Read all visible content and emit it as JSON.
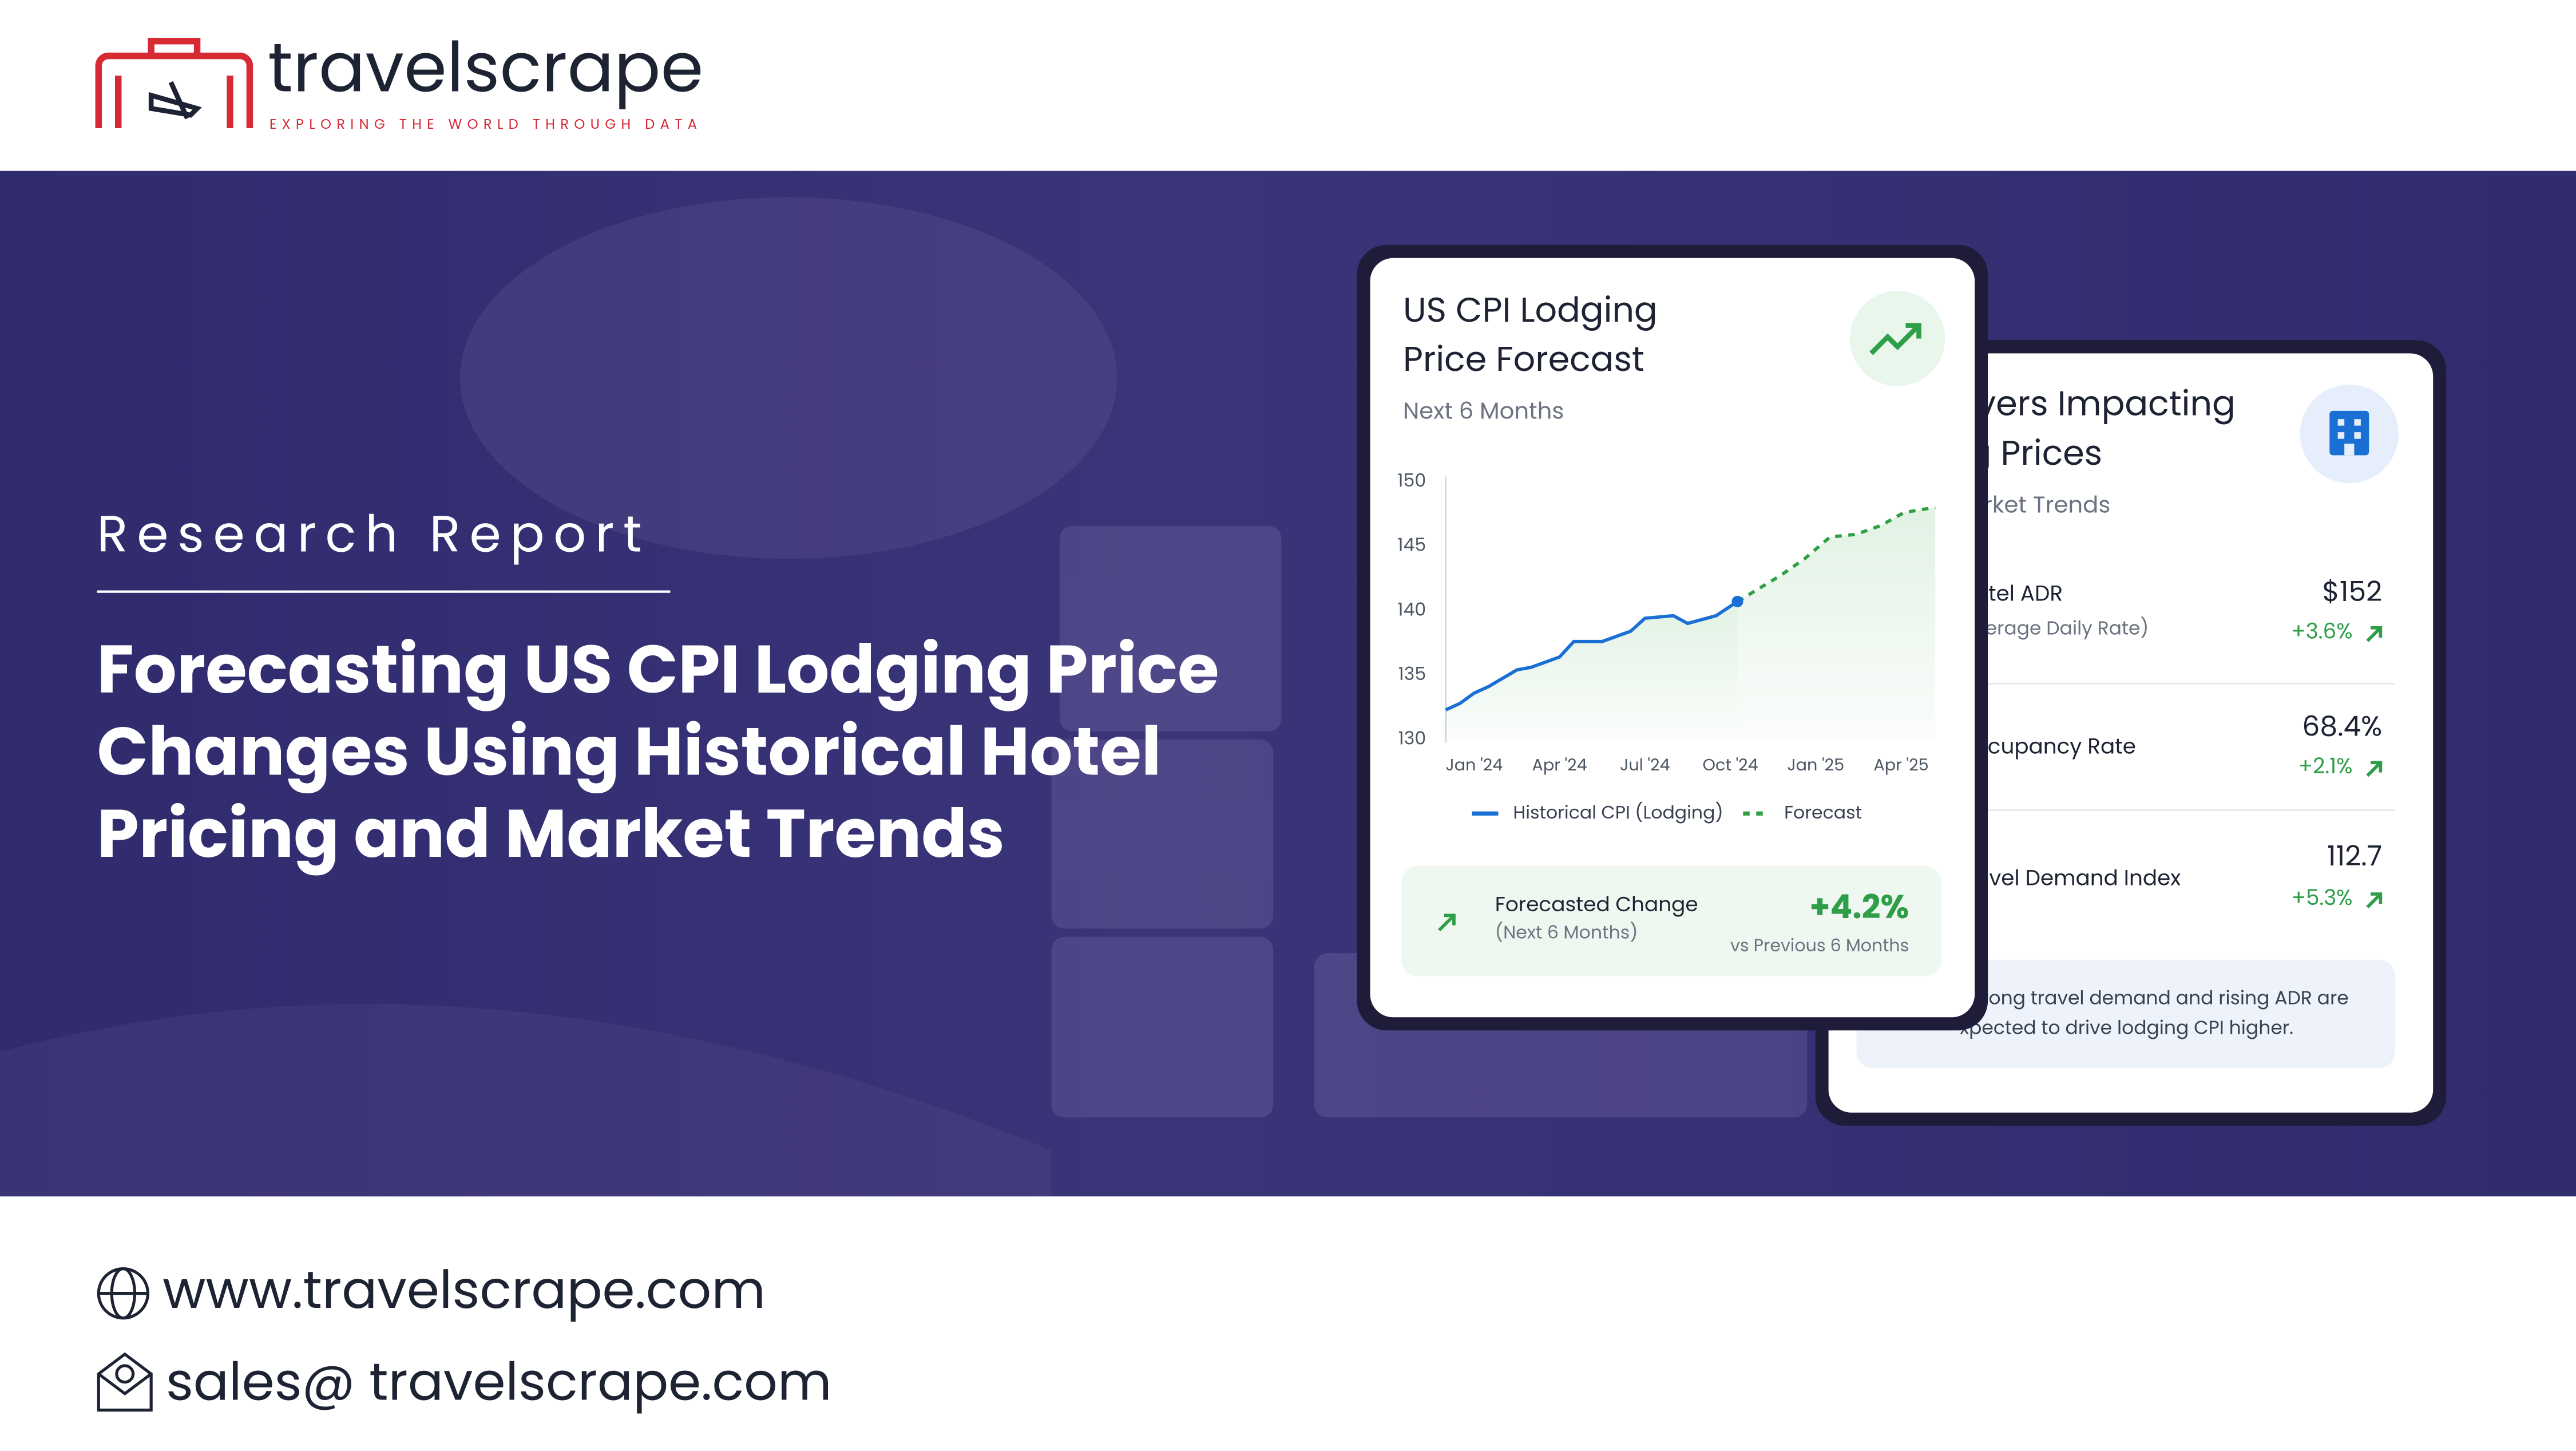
{
  "header": {
    "brand": "travelscrape",
    "tagline": "EXPLORING THE WORLD THROUGH DATA"
  },
  "hero": {
    "kicker": "Research Report",
    "title_lines": [
      "Forecasting US CPI Lodging Price",
      "Changes Using Historical Hotel",
      "Pricing and Market Trends"
    ]
  },
  "forecast_card": {
    "title_lines": [
      "US CPI Lodging",
      "Price Forecast"
    ],
    "subtitle": "Next 6 Months",
    "chart_data": {
      "type": "line",
      "xlim": [
        -1,
        16.2
      ],
      "xticks": [
        {
          "value": 0,
          "label": "Jan '24"
        },
        {
          "value": 3,
          "label": "Apr '24"
        },
        {
          "value": 6,
          "label": "Jul '24"
        },
        {
          "value": 9,
          "label": "Oct '24"
        },
        {
          "value": 12,
          "label": "Jan '25"
        },
        {
          "value": 15,
          "label": "Apr '25"
        }
      ],
      "ylim": [
        130,
        150
      ],
      "yticks": [
        130,
        135,
        140,
        145,
        150
      ],
      "grid": false,
      "series": [
        {
          "name": "Historical CPI (Lodging)",
          "color": "#1a6fd4",
          "dashed": false,
          "x": [
            -1,
            -0.5,
            0,
            0.5,
            1.5,
            2,
            3,
            3.5,
            4.5,
            5.5,
            6,
            7,
            7.5,
            8.5,
            9.25
          ],
          "values": [
            132.3,
            132.8,
            133.6,
            134.1,
            135.4,
            135.6,
            136.4,
            137.6,
            137.6,
            138.4,
            139.4,
            139.6,
            139.0,
            139.6,
            140.7
          ]
        },
        {
          "name": "Forecast",
          "color": "#2ea043",
          "dashed": true,
          "x": [
            9.25,
            10,
            10.75,
            11.6,
            12.5,
            13.4,
            14.3,
            15.1,
            16.2
          ],
          "values": [
            140.7,
            141.7,
            142.7,
            144.0,
            145.7,
            145.9,
            146.6,
            147.6,
            148.0
          ]
        }
      ]
    },
    "change_title": "Forecasted Change",
    "change_period": "(Next 6 Months)",
    "change_value": "+4.2%",
    "change_note": "vs Previous 6 Months"
  },
  "drivers_card": {
    "title_lines": [
      "ivers Impacting",
      "g Prices"
    ],
    "subtitle": "arket Trends",
    "rows": [
      {
        "label": "otel ADR",
        "sublabel": "verage Daily Rate)",
        "value": "$152",
        "change": "+3.6%"
      },
      {
        "label": "ccupancy Rate",
        "value": "68.4%",
        "change": "+2.1%"
      },
      {
        "label": "avel Demand Index",
        "value": "112.7",
        "change": "+5.3%"
      }
    ],
    "note_lines": [
      "trong travel demand and rising ADR are",
      "xpected to drive lodging CPI higher."
    ]
  },
  "contact": {
    "website": "www.travelscrape.com",
    "email": "sales@ travelscrape.com"
  }
}
